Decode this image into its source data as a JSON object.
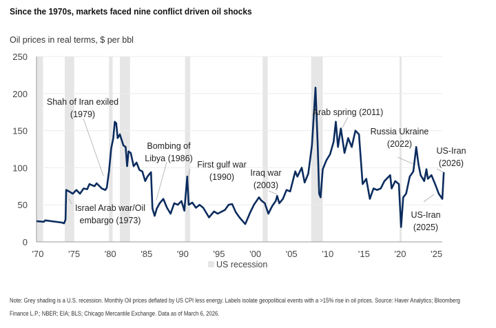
{
  "title": "Since the 1970s, markets faced nine conflict driven oil shocks",
  "subtitle": "Oil prices in real terms, $ per bbl",
  "note_line1": "Note: Grey shading is a U.S. recession. Monthly Oil prices deflated by US CPI less energy. Labels isolate geopolitical events with a >15% rise in oil prices. Source: Haver Analytics; Bloomberg",
  "note_line2": "Finance L.P.; NBER; EIA; BLS; Chicago Mercantile Exchange. Data as of March 6, 2026.",
  "chart_data": {
    "type": "line",
    "title": "Since the 1970s, markets faced nine conflict driven oil shocks",
    "ylabel": "Oil prices in real terms, $ per bbl",
    "ylim": [
      0,
      250
    ],
    "yticks": [
      "0",
      "50",
      "100",
      "150",
      "200",
      "250"
    ],
    "xlim": [
      1970,
      2026.3
    ],
    "xticks": [
      "'70",
      "'75",
      "'80",
      "'85",
      "'90",
      "'95",
      "'00",
      "'05",
      "'10",
      "'15",
      "'20",
      "'25"
    ],
    "grid": "horizontal",
    "line_color": "#0b2c5e",
    "recession_color": "#e6e6e6",
    "legend": {
      "label": "US recession",
      "placement": "bottom-center"
    },
    "recessions": [
      [
        1970.0,
        1970.9
      ],
      [
        1973.9,
        1975.2
      ],
      [
        1980.0,
        1980.5
      ],
      [
        1981.5,
        1982.9
      ],
      [
        1990.5,
        1991.2
      ],
      [
        2001.2,
        2001.9
      ],
      [
        2007.9,
        2009.5
      ],
      [
        2020.1,
        2020.3
      ]
    ],
    "series": [
      {
        "x": [
          1970,
          1971,
          1971.2,
          1973.5,
          1973.8,
          1974.0,
          1974.1,
          1974.5,
          1975,
          1975.5,
          1976,
          1976.5,
          1977,
          1977.3,
          1978,
          1978.3,
          1979,
          1979.5,
          1979.7,
          1980.0,
          1980.3,
          1980.6,
          1980.8,
          1981.0,
          1981.2,
          1981.5,
          1982.0,
          1982.3,
          1982.5,
          1982.7,
          1983.0,
          1983.4,
          1983.8,
          1984.2,
          1984.6,
          1985.0,
          1985.3,
          1985.8,
          1986.0,
          1986.3,
          1986.6,
          1987.0,
          1987.5,
          1988,
          1988.5,
          1989,
          1989.5,
          1990.0,
          1990.4,
          1990.8,
          1991.0,
          1991.5,
          1992,
          1992.5,
          1993,
          1993.8,
          1994.5,
          1995,
          1996,
          1996.5,
          1997,
          1997.5,
          1998,
          1998.8,
          1999.5,
          2000,
          2000.7,
          2001,
          2001.5,
          2002,
          2002.5,
          2003,
          2003.2,
          2003.5,
          2004,
          2004.5,
          2005,
          2005.7,
          2006,
          2006.6,
          2007,
          2007.5,
          2008.0,
          2008.5,
          2008.8,
          2009.0,
          2009.2,
          2009.5,
          2010,
          2010.5,
          2011,
          2011.3,
          2011.6,
          2012,
          2012.5,
          2013,
          2013.5,
          2014,
          2014.5,
          2015,
          2015.5,
          2016,
          2016.5,
          2017,
          2017.5,
          2018,
          2018.8,
          2019,
          2019.5,
          2020.0,
          2020.3,
          2020.6,
          2021,
          2021.5,
          2022,
          2022.4,
          2022.7,
          2023,
          2023.5,
          2023.8,
          2024,
          2024.5,
          2025,
          2025.5,
          2026,
          2026.2
        ],
        "y": [
          28,
          27,
          29,
          26,
          25,
          30,
          70,
          68,
          65,
          70,
          65,
          72,
          71,
          78,
          75,
          79,
          72,
          70,
          73,
          95,
          126,
          140,
          162,
          160,
          140,
          145,
          130,
          128,
          102,
          122,
          120,
          102,
          107,
          97,
          95,
          82,
          88,
          94,
          45,
          35,
          45,
          52,
          58,
          46,
          38,
          52,
          50,
          55,
          42,
          88,
          50,
          53,
          46,
          50,
          46,
          33,
          41,
          38,
          43,
          50,
          51,
          40,
          33,
          24,
          40,
          50,
          60,
          56,
          52,
          38,
          48,
          55,
          62,
          52,
          58,
          70,
          68,
          95,
          88,
          100,
          80,
          92,
          130,
          208,
          130,
          65,
          60,
          98,
          110,
          118,
          135,
          162,
          128,
          153,
          120,
          140,
          128,
          150,
          145,
          78,
          85,
          58,
          72,
          70,
          72,
          82,
          90,
          72,
          82,
          78,
          20,
          60,
          65,
          88,
          95,
          128,
          105,
          90,
          82,
          98,
          85,
          90,
          78,
          65,
          58,
          94
        ]
      }
    ],
    "annotations": [
      {
        "line1": "Shah of Iran exiled",
        "line2": "(1979)"
      },
      {
        "line1": "Israel Arab war/Oil",
        "line2": "embargo (1973)"
      },
      {
        "line1": "Bombing of",
        "line2": "Libya (1986)"
      },
      {
        "line1": "First gulf war",
        "line2": "(1990)"
      },
      {
        "line1": "Iraq war",
        "line2": "(2003)"
      },
      {
        "line1": "Arab spring (2011)",
        "line2": ""
      },
      {
        "line1": "Russia Ukraine",
        "line2": "(2022)"
      },
      {
        "line1": "US-Iran",
        "line2": "(2026)"
      },
      {
        "line1": "US-Iran",
        "line2": "(2025)"
      }
    ]
  }
}
